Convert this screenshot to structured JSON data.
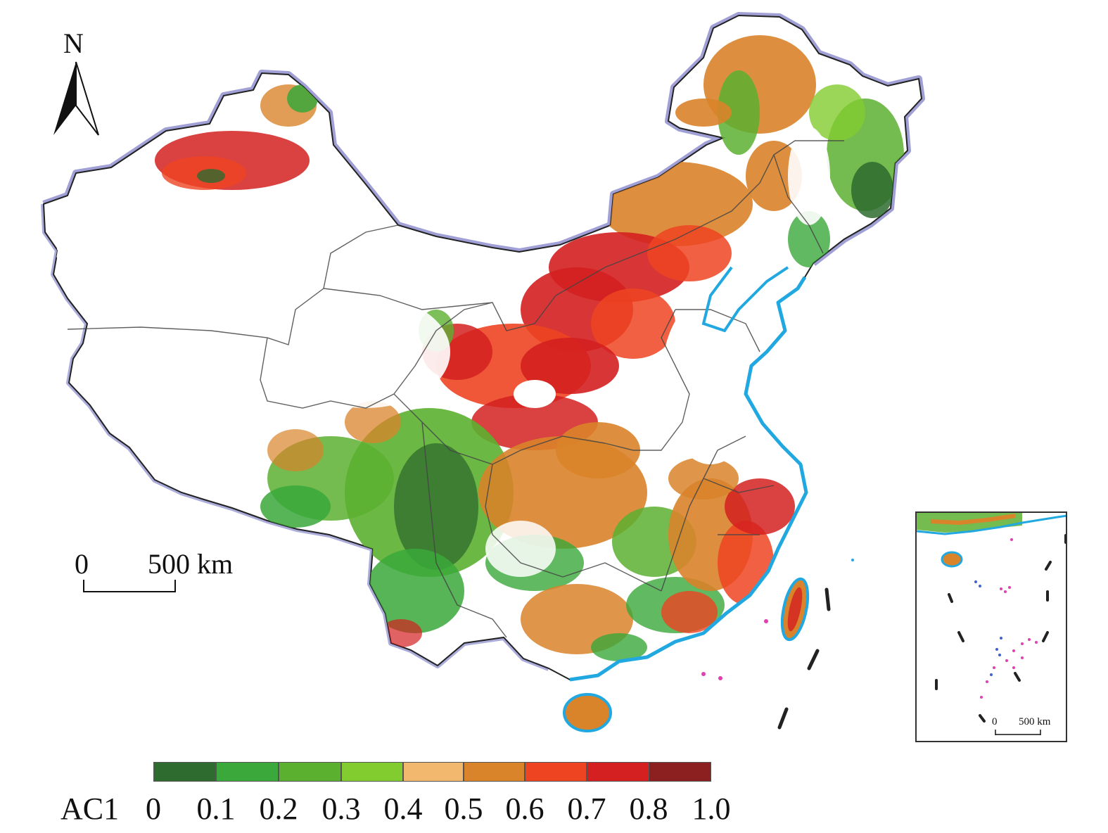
{
  "map": {
    "north_label": "N",
    "scale_bar": {
      "start_label": "0",
      "end_label": "500 km"
    },
    "inset": {
      "scale_start_label": "0",
      "scale_end_label": "500 km"
    },
    "colors": {
      "boundary_outline": "#8080c8",
      "province_lines": "#444444",
      "coastline": "#22a8e0",
      "island_pink": "#e040b0",
      "island_blue": "#4060d0"
    }
  },
  "legend": {
    "title": "AC1",
    "tick_labels": [
      "0",
      "0.1",
      "0.2",
      "0.3",
      "0.4",
      "0.5",
      "0.6",
      "0.7",
      "0.8",
      "1.0"
    ],
    "colors": [
      "#2e6b2e",
      "#3aa83a",
      "#5cb030",
      "#82cc30",
      "#f2b86e",
      "#d9832a",
      "#ee4422",
      "#d42020",
      "#8c1f1f"
    ]
  }
}
